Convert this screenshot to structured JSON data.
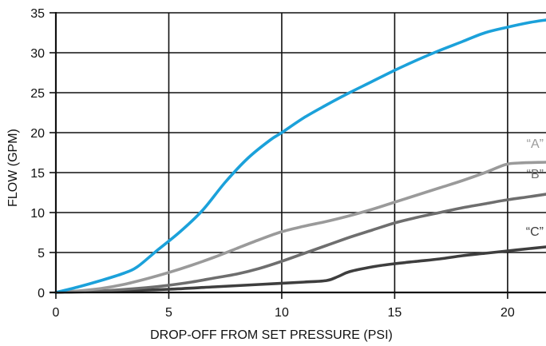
{
  "chart_data": {
    "type": "line",
    "xlabel": "DROP-OFF FROM SET PRESSURE (PSI)",
    "ylabel": "FLOW (GPM)",
    "xlim": [
      0,
      21.7
    ],
    "ylim": [
      0,
      35
    ],
    "x_ticks": [
      0,
      5,
      10,
      15,
      20
    ],
    "y_ticks": [
      0,
      5,
      10,
      15,
      20,
      25,
      30,
      35
    ],
    "x_tick_labels": [
      "0",
      "5",
      "10",
      "15",
      "20"
    ],
    "y_tick_labels": [
      "0",
      "5",
      "10",
      "15",
      "20",
      "25",
      "30",
      "35"
    ],
    "grid": true,
    "series": [
      {
        "color": "#1BA1DA",
        "label_text": "",
        "points": [
          [
            0,
            0
          ],
          [
            1,
            0.7
          ],
          [
            2,
            1.5
          ],
          [
            3,
            2.4
          ],
          [
            3.6,
            3.2
          ],
          [
            4.5,
            5.3
          ],
          [
            5.5,
            7.6
          ],
          [
            6.5,
            10.3
          ],
          [
            7.5,
            13.8
          ],
          [
            8.5,
            16.8
          ],
          [
            9.5,
            19.1
          ],
          [
            10,
            20.0
          ],
          [
            11,
            21.9
          ],
          [
            12,
            23.5
          ],
          [
            13,
            25.0
          ],
          [
            14,
            26.4
          ],
          [
            15,
            27.8
          ],
          [
            16,
            29.1
          ],
          [
            17,
            30.3
          ],
          [
            18,
            31.4
          ],
          [
            19,
            32.5
          ],
          [
            20,
            33.2
          ],
          [
            21,
            33.8
          ],
          [
            21.7,
            34.1
          ]
        ]
      },
      {
        "color": "#9A9A9A",
        "label_text": "“A”",
        "points": [
          [
            0,
            0
          ],
          [
            1,
            0.2
          ],
          [
            2,
            0.5
          ],
          [
            3,
            1.0
          ],
          [
            4,
            1.7
          ],
          [
            5,
            2.5
          ],
          [
            6,
            3.4
          ],
          [
            7,
            4.4
          ],
          [
            8,
            5.5
          ],
          [
            9,
            6.6
          ],
          [
            10,
            7.6
          ],
          [
            11,
            8.3
          ],
          [
            12,
            8.9
          ],
          [
            13,
            9.6
          ],
          [
            14,
            10.4
          ],
          [
            15,
            11.3
          ],
          [
            16,
            12.2
          ],
          [
            17,
            13.1
          ],
          [
            18,
            14.0
          ],
          [
            19,
            15.0
          ],
          [
            19.9,
            16.0
          ],
          [
            20.5,
            16.2
          ],
          [
            21.7,
            16.3
          ]
        ]
      },
      {
        "color": "#6E6E6E",
        "label_text": "“B”",
        "points": [
          [
            0,
            0
          ],
          [
            2,
            0.2
          ],
          [
            4,
            0.6
          ],
          [
            5,
            0.9
          ],
          [
            6,
            1.3
          ],
          [
            7,
            1.8
          ],
          [
            8,
            2.3
          ],
          [
            9,
            3.0
          ],
          [
            10,
            3.9
          ],
          [
            11,
            4.9
          ],
          [
            12,
            5.9
          ],
          [
            13,
            6.9
          ],
          [
            14,
            7.8
          ],
          [
            15,
            8.7
          ],
          [
            16,
            9.4
          ],
          [
            17,
            10.0
          ],
          [
            18,
            10.6
          ],
          [
            19,
            11.1
          ],
          [
            20,
            11.6
          ],
          [
            21,
            12.0
          ],
          [
            21.7,
            12.3
          ]
        ]
      },
      {
        "color": "#3E3E3E",
        "label_text": "“C”",
        "points": [
          [
            0,
            0
          ],
          [
            3,
            0.2
          ],
          [
            5,
            0.4
          ],
          [
            7,
            0.7
          ],
          [
            9,
            1.0
          ],
          [
            11,
            1.3
          ],
          [
            12,
            1.5
          ],
          [
            12.5,
            2.0
          ],
          [
            13,
            2.6
          ],
          [
            14,
            3.2
          ],
          [
            15,
            3.6
          ],
          [
            16,
            3.9
          ],
          [
            17,
            4.2
          ],
          [
            18,
            4.6
          ],
          [
            19,
            4.9
          ],
          [
            20,
            5.2
          ],
          [
            21,
            5.5
          ],
          [
            21.7,
            5.7
          ]
        ]
      }
    ]
  }
}
